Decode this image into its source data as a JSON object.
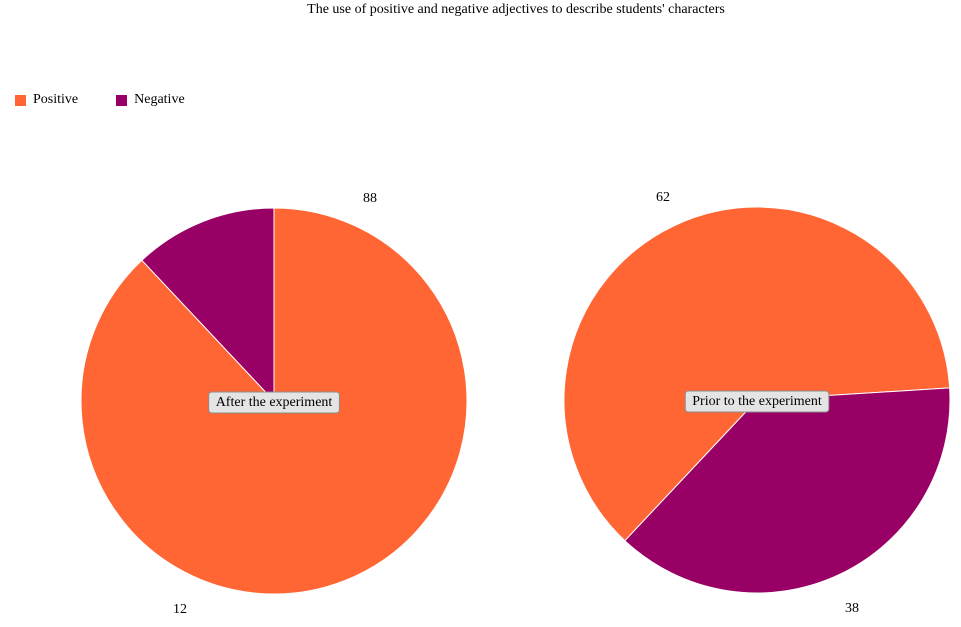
{
  "chart_data": [
    {
      "type": "pie",
      "title": "The use of positive and negative adjectives to describe students' characters",
      "name": "After the experiment",
      "slices": [
        {
          "label": "Positive",
          "value": 88
        },
        {
          "label": "Negative",
          "value": 12
        }
      ]
    },
    {
      "type": "pie",
      "title": "The use of positive and negative adjectives to describe students' characters",
      "name": "Prior to the experiment",
      "slices": [
        {
          "label": "Positive",
          "value": 62
        },
        {
          "label": "Negative",
          "value": 38
        }
      ]
    }
  ],
  "header": {
    "title": "The use of positive and negative adjectives to describe students' characters"
  },
  "legend": {
    "placement": "top-left",
    "items": [
      {
        "label": "Positive",
        "color": "#FF6633"
      },
      {
        "label": "Negative",
        "color": "#990066"
      }
    ]
  }
}
